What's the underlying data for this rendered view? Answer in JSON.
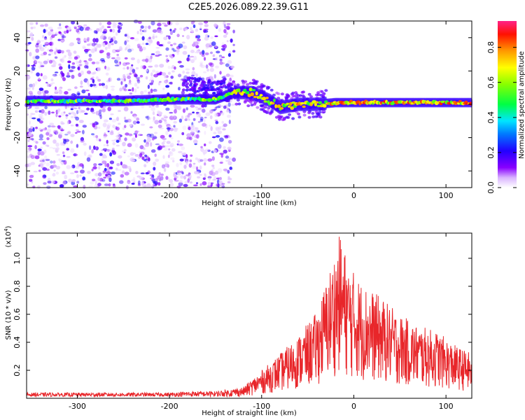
{
  "title": "C2E5.2026.089.22.39.G11",
  "chart_data": [
    {
      "type": "heatmap",
      "xlabel": "Height of straight line (km)",
      "ylabel": "Frequency (Hz)",
      "xlim": [
        -355,
        128
      ],
      "ylim": [
        -50,
        50
      ],
      "xticks": [
        -300,
        -200,
        -100,
        0,
        100
      ],
      "yticks": [
        -40,
        -20,
        0,
        20,
        40
      ],
      "colorbar": {
        "label": "Normalized spectral amplitude",
        "range": [
          0,
          0.95
        ],
        "ticks": [
          0.0,
          0.2,
          0.4,
          0.6,
          0.8
        ],
        "colormap": "rainbow (white/purple low → red/pink high)"
      },
      "ridge": [
        {
          "x": -355,
          "y": 2
        },
        {
          "x": -300,
          "y": 2
        },
        {
          "x": -250,
          "y": 2
        },
        {
          "x": -200,
          "y": 3
        },
        {
          "x": -150,
          "y": 3
        },
        {
          "x": -130,
          "y": 7
        },
        {
          "x": -110,
          "y": 7
        },
        {
          "x": -90,
          "y": 2
        },
        {
          "x": -80,
          "y": -2
        },
        {
          "x": -60,
          "y": 0
        },
        {
          "x": -40,
          "y": 0
        },
        {
          "x": -20,
          "y": 1
        },
        {
          "x": 0,
          "y": 1
        },
        {
          "x": 50,
          "y": 1
        },
        {
          "x": 100,
          "y": 1
        },
        {
          "x": 128,
          "y": 1
        }
      ]
    },
    {
      "type": "line",
      "xlabel": "Height of straight line (km)",
      "ylabel": "SNR (10 * v/v)",
      "scale_label": "(x10",
      "scale_exp": "4",
      "scale_close": ")",
      "xlim": [
        -355,
        128
      ],
      "ylim": [
        0,
        1.18
      ],
      "xticks": [
        -300,
        -200,
        -100,
        0,
        100
      ],
      "yticks": [
        0.2,
        0.4,
        0.6,
        0.8,
        1.0
      ],
      "series": [
        {
          "color": "#e8262a",
          "envelope": [
            {
              "x": -355,
              "y": 0.04
            },
            {
              "x": -200,
              "y": 0.04
            },
            {
              "x": -180,
              "y": 0.05
            },
            {
              "x": -150,
              "y": 0.05
            },
            {
              "x": -120,
              "y": 0.08
            },
            {
              "x": -100,
              "y": 0.2
            },
            {
              "x": -80,
              "y": 0.32
            },
            {
              "x": -60,
              "y": 0.45
            },
            {
              "x": -40,
              "y": 0.62
            },
            {
              "x": -25,
              "y": 0.95
            },
            {
              "x": -15,
              "y": 1.18
            },
            {
              "x": -5,
              "y": 0.95
            },
            {
              "x": 10,
              "y": 0.82
            },
            {
              "x": 30,
              "y": 0.72
            },
            {
              "x": 50,
              "y": 0.6
            },
            {
              "x": 70,
              "y": 0.52
            },
            {
              "x": 90,
              "y": 0.48
            },
            {
              "x": 110,
              "y": 0.38
            },
            {
              "x": 128,
              "y": 0.32
            }
          ]
        }
      ]
    }
  ]
}
